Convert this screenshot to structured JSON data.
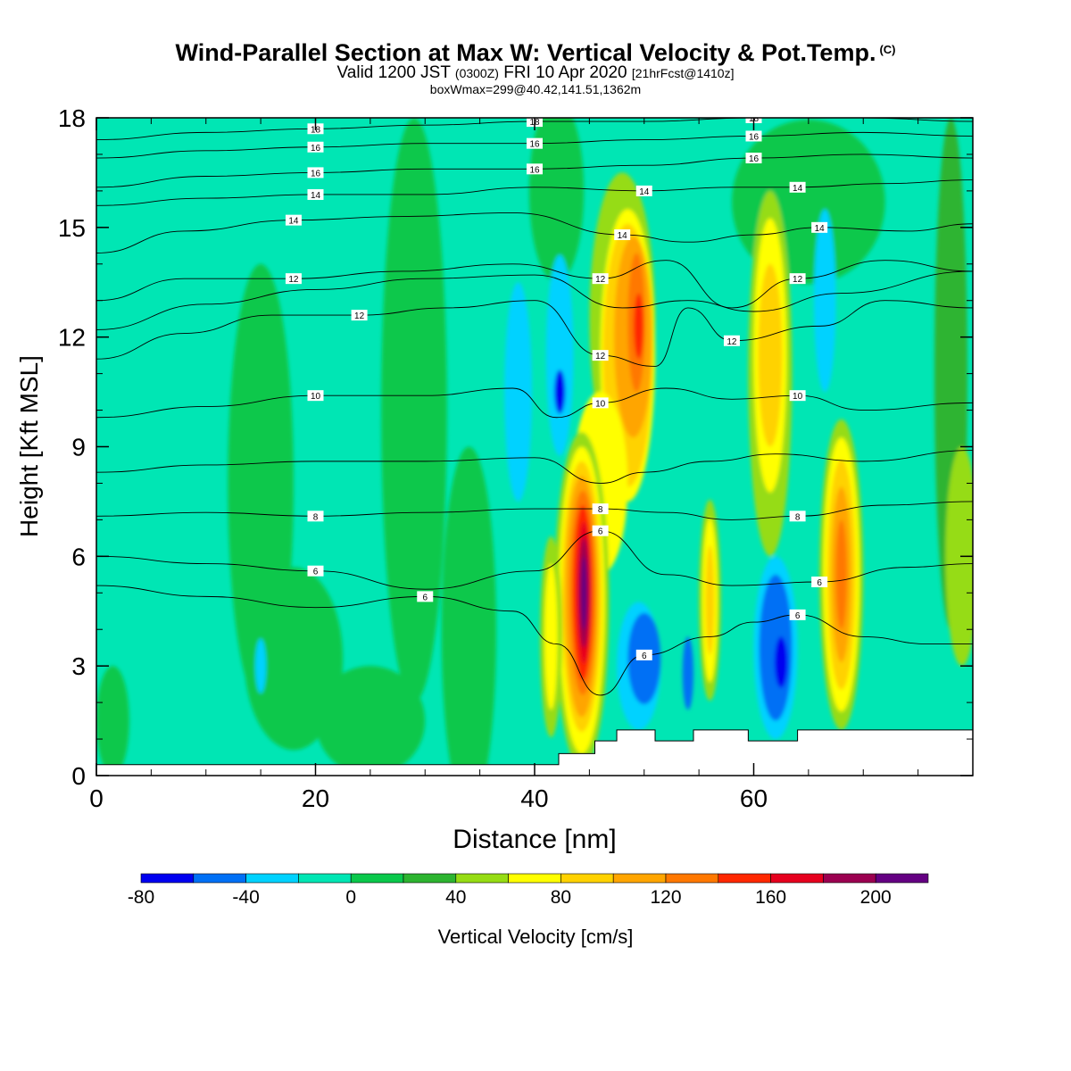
{
  "header": {
    "title": "Wind-Parallel Section at Max W: Vertical Velocity & Pot.Temp.",
    "copyright": "(C)",
    "valid_prefix": "Valid 1200 JST",
    "utc": "(0300Z)",
    "valid_date": "FRI 10 Apr 2020",
    "forecast": "[21hrFcst@1410z]",
    "box_info": "boxWmax=299@40.42,141.51,1362m"
  },
  "chart_data": {
    "type": "heatmap",
    "title": "Wind-Parallel Section at Max W: Vertical Velocity & Pot.Temp.",
    "xlabel": "Distance [nm]",
    "ylabel": "Height [Kft MSL]",
    "xlim": [
      0,
      80
    ],
    "ylim": [
      0,
      18
    ],
    "x_ticks": [
      "0",
      "20",
      "40",
      "60"
    ],
    "y_ticks": [
      "0",
      "3",
      "6",
      "9",
      "12",
      "15",
      "18"
    ],
    "colorbar": {
      "label": "Vertical Velocity [cm/s]",
      "tick_labels": [
        "-80",
        "-40",
        "0",
        "40",
        "80",
        "120",
        "160",
        "200"
      ],
      "bounds": [
        -80,
        -60,
        -40,
        -20,
        0,
        20,
        40,
        60,
        80,
        100,
        120,
        140,
        160,
        180,
        200,
        220
      ],
      "colors": [
        "#0000f0",
        "#0070f5",
        "#00d2ff",
        "#00e6b4",
        "#0ac84b",
        "#2db430",
        "#96dc14",
        "#ffff00",
        "#ffd200",
        "#ffa500",
        "#ff7800",
        "#ff2800",
        "#e6001e",
        "#9b0050",
        "#640082"
      ]
    },
    "velocity_cells": [
      {
        "x": 65,
        "y": 15.7,
        "w": 14,
        "h": 4.5,
        "v": 10
      },
      {
        "x": 15,
        "y": 8,
        "w": 6,
        "h": 12,
        "v": 10
      },
      {
        "x": 29,
        "y": 10,
        "w": 6,
        "h": 16,
        "v": 10
      },
      {
        "x": 18,
        "y": 3.2,
        "w": 9,
        "h": 5,
        "v": 10
      },
      {
        "x": 25,
        "y": 1.5,
        "w": 10,
        "h": 3,
        "v": 10
      },
      {
        "x": 34,
        "y": 4,
        "w": 5,
        "h": 10,
        "v": 10
      },
      {
        "x": 42,
        "y": 16,
        "w": 5,
        "h": 5,
        "v": 10
      },
      {
        "x": 78,
        "y": 11,
        "w": 3,
        "h": 14,
        "v": 30
      },
      {
        "x": 79,
        "y": 6,
        "w": 3,
        "h": 6,
        "v": 50
      },
      {
        "x": 1.5,
        "y": 1.5,
        "w": 3,
        "h": 3,
        "v": 10
      },
      {
        "x": 38.5,
        "y": 10.5,
        "w": 2.5,
        "h": 6,
        "v": -30
      },
      {
        "x": 42.3,
        "y": 11.5,
        "w": 2.5,
        "h": 5.5,
        "v": -30
      },
      {
        "x": 42.3,
        "y": 10.5,
        "w": 1,
        "h": 1.2,
        "v": -70
      },
      {
        "x": 49.5,
        "y": 3,
        "w": 4,
        "h": 3.5,
        "v": -30
      },
      {
        "x": 50,
        "y": 3.2,
        "w": 3,
        "h": 2.5,
        "v": -50
      },
      {
        "x": 54,
        "y": 2.8,
        "w": 1,
        "h": 2,
        "v": -50
      },
      {
        "x": 62,
        "y": 3.5,
        "w": 4,
        "h": 5,
        "v": -30
      },
      {
        "x": 62,
        "y": 3.5,
        "w": 3,
        "h": 4,
        "v": -50
      },
      {
        "x": 62.5,
        "y": 3.1,
        "w": 1.2,
        "h": 1.4,
        "v": -70
      },
      {
        "x": 66.5,
        "y": 13,
        "w": 2,
        "h": 5,
        "v": -30
      },
      {
        "x": 15,
        "y": 3,
        "w": 1,
        "h": 1.5,
        "v": -30
      },
      {
        "x": 48,
        "y": 12.5,
        "w": 6,
        "h": 8,
        "v": 50
      },
      {
        "x": 48.5,
        "y": 11.5,
        "w": 5,
        "h": 8,
        "v": 70
      },
      {
        "x": 48.5,
        "y": 11.5,
        "w": 4.5,
        "h": 7.2,
        "v": 90
      },
      {
        "x": 49,
        "y": 12,
        "w": 3.5,
        "h": 5.5,
        "v": 110
      },
      {
        "x": 49.3,
        "y": 12.4,
        "w": 1.6,
        "h": 3.8,
        "v": 130
      },
      {
        "x": 49.5,
        "y": 12.3,
        "w": 0.9,
        "h": 1.8,
        "v": 150
      },
      {
        "x": 46,
        "y": 8,
        "w": 5,
        "h": 5,
        "v": 70
      },
      {
        "x": 44.3,
        "y": 4.8,
        "w": 5,
        "h": 9.2,
        "v": 50
      },
      {
        "x": 44.3,
        "y": 4.8,
        "w": 4.2,
        "h": 8.4,
        "v": 70
      },
      {
        "x": 44.3,
        "y": 4.9,
        "w": 3.6,
        "h": 7.4,
        "v": 90
      },
      {
        "x": 44.3,
        "y": 4.9,
        "w": 3,
        "h": 6.6,
        "v": 110
      },
      {
        "x": 44.4,
        "y": 5,
        "w": 2.4,
        "h": 5.6,
        "v": 130
      },
      {
        "x": 44.4,
        "y": 5,
        "w": 1.8,
        "h": 4.8,
        "v": 150
      },
      {
        "x": 44.5,
        "y": 5,
        "w": 1.3,
        "h": 3.9,
        "v": 170
      },
      {
        "x": 44.5,
        "y": 5,
        "w": 0.9,
        "h": 3,
        "v": 190
      },
      {
        "x": 44.5,
        "y": 5,
        "w": 0.5,
        "h": 2,
        "v": 210
      },
      {
        "x": 41.5,
        "y": 3.8,
        "w": 2,
        "h": 5.5,
        "v": 50
      },
      {
        "x": 41.5,
        "y": 3.8,
        "w": 1.2,
        "h": 4,
        "v": 70
      },
      {
        "x": 61.5,
        "y": 11,
        "w": 4,
        "h": 10,
        "v": 50
      },
      {
        "x": 61.5,
        "y": 11.5,
        "w": 3,
        "h": 7.5,
        "v": 70
      },
      {
        "x": 61.5,
        "y": 11.5,
        "w": 2.2,
        "h": 5,
        "v": 90
      },
      {
        "x": 56,
        "y": 4.8,
        "w": 2,
        "h": 5.5,
        "v": 50
      },
      {
        "x": 56,
        "y": 4.8,
        "w": 1.4,
        "h": 4.5,
        "v": 70
      },
      {
        "x": 56,
        "y": 4.8,
        "w": 0.8,
        "h": 3,
        "v": 90
      },
      {
        "x": 68,
        "y": 5.5,
        "w": 4,
        "h": 8.5,
        "v": 50
      },
      {
        "x": 68,
        "y": 5.5,
        "w": 3.3,
        "h": 7.5,
        "v": 70
      },
      {
        "x": 68,
        "y": 5.5,
        "w": 2.6,
        "h": 6.3,
        "v": 90
      },
      {
        "x": 68,
        "y": 5.5,
        "w": 1.8,
        "h": 4.8,
        "v": 110
      },
      {
        "x": 68,
        "y": 5.5,
        "w": 1,
        "h": 3,
        "v": 130
      }
    ],
    "theta_contours": [
      {
        "label": "6",
        "points": [
          [
            0,
            5.2
          ],
          [
            10,
            4.9
          ],
          [
            20,
            4.6
          ],
          [
            30,
            4.9
          ],
          [
            38,
            4.5
          ],
          [
            42,
            3.6
          ],
          [
            46,
            2.2
          ],
          [
            50,
            3.3
          ],
          [
            56,
            3.8
          ],
          [
            60,
            4.2
          ],
          [
            64,
            4.4
          ],
          [
            70,
            3.8
          ],
          [
            76,
            3.6
          ],
          [
            80,
            3.6
          ]
        ]
      },
      {
        "label": "6",
        "points": [
          [
            0,
            6
          ],
          [
            10,
            5.8
          ],
          [
            20,
            5.6
          ],
          [
            30,
            5.1
          ],
          [
            40,
            5.6
          ],
          [
            46,
            6.7
          ],
          [
            52,
            5.5
          ],
          [
            58,
            5.2
          ],
          [
            66,
            5.3
          ],
          [
            74,
            5.7
          ],
          [
            80,
            5.8
          ]
        ]
      },
      {
        "label": "8",
        "points": [
          [
            0,
            7.1
          ],
          [
            10,
            7.2
          ],
          [
            20,
            7.1
          ],
          [
            30,
            7.2
          ],
          [
            40,
            7.3
          ],
          [
            46,
            7.3
          ],
          [
            52,
            7.2
          ],
          [
            58,
            7
          ],
          [
            64,
            7.1
          ],
          [
            72,
            7.4
          ],
          [
            80,
            7.5
          ]
        ]
      },
      {
        "label": "",
        "points": [
          [
            0,
            8.3
          ],
          [
            10,
            8.5
          ],
          [
            20,
            8.6
          ],
          [
            30,
            8.6
          ],
          [
            40,
            8.7
          ],
          [
            46,
            8
          ],
          [
            50,
            8.3
          ],
          [
            56,
            8.6
          ],
          [
            62,
            8.8
          ],
          [
            70,
            8.6
          ],
          [
            80,
            8.9
          ]
        ]
      },
      {
        "label": "10",
        "points": [
          [
            0,
            9.8
          ],
          [
            10,
            10.1
          ],
          [
            20,
            10.4
          ],
          [
            30,
            10.4
          ],
          [
            38,
            10.6
          ],
          [
            42,
            9.8
          ],
          [
            46,
            10.2
          ],
          [
            52,
            10.6
          ],
          [
            58,
            10.3
          ],
          [
            64,
            10.4
          ],
          [
            70,
            10
          ],
          [
            80,
            10.2
          ]
        ]
      },
      {
        "label": "12",
        "points": [
          [
            0,
            11.4
          ],
          [
            8,
            12.1
          ],
          [
            16,
            12.6
          ],
          [
            24,
            12.6
          ],
          [
            32,
            12.8
          ],
          [
            40,
            13
          ],
          [
            46,
            11.5
          ],
          [
            51,
            11.2
          ],
          [
            54,
            12.8
          ],
          [
            58,
            11.9
          ],
          [
            66,
            12.3
          ],
          [
            72,
            13
          ],
          [
            80,
            12.8
          ]
        ]
      },
      {
        "label": "",
        "points": [
          [
            0,
            12.2
          ],
          [
            10,
            12.9
          ],
          [
            20,
            13.3
          ],
          [
            30,
            13.6
          ],
          [
            40,
            13.7
          ],
          [
            48,
            12.8
          ],
          [
            54,
            13
          ],
          [
            60,
            12.7
          ],
          [
            68,
            13.2
          ],
          [
            80,
            13.8
          ]
        ]
      },
      {
        "label": "12",
        "points": [
          [
            0,
            13
          ],
          [
            8,
            13.6
          ],
          [
            18,
            13.6
          ],
          [
            28,
            13.8
          ],
          [
            38,
            14
          ],
          [
            46,
            13.6
          ],
          [
            52,
            14.1
          ],
          [
            58,
            12.8
          ],
          [
            64,
            13.6
          ],
          [
            72,
            14.1
          ],
          [
            80,
            13.8
          ]
        ]
      },
      {
        "label": "14",
        "points": [
          [
            0,
            14.3
          ],
          [
            8,
            14.9
          ],
          [
            18,
            15.2
          ],
          [
            28,
            15.3
          ],
          [
            38,
            15.4
          ],
          [
            48,
            14.8
          ],
          [
            54,
            14.6
          ],
          [
            60,
            14.8
          ],
          [
            66,
            15
          ],
          [
            74,
            14.9
          ],
          [
            80,
            15.1
          ]
        ]
      },
      {
        "label": "14",
        "points": [
          [
            0,
            15.6
          ],
          [
            10,
            15.8
          ],
          [
            20,
            15.9
          ],
          [
            30,
            15.9
          ],
          [
            40,
            16.1
          ],
          [
            50,
            16
          ],
          [
            58,
            16.1
          ],
          [
            64,
            16.1
          ],
          [
            72,
            16.2
          ],
          [
            80,
            16.3
          ]
        ]
      },
      {
        "label": "16",
        "points": [
          [
            0,
            16.1
          ],
          [
            10,
            16.4
          ],
          [
            20,
            16.5
          ],
          [
            30,
            16.6
          ],
          [
            40,
            16.6
          ],
          [
            50,
            16.7
          ],
          [
            60,
            16.9
          ],
          [
            70,
            17
          ],
          [
            80,
            16.9
          ]
        ]
      },
      {
        "label": "16",
        "points": [
          [
            0,
            16.9
          ],
          [
            10,
            17.1
          ],
          [
            20,
            17.2
          ],
          [
            30,
            17.3
          ],
          [
            40,
            17.3
          ],
          [
            50,
            17.4
          ],
          [
            60,
            17.5
          ],
          [
            70,
            17.6
          ],
          [
            80,
            17.5
          ]
        ]
      },
      {
        "label": "18",
        "points": [
          [
            0,
            17.4
          ],
          [
            10,
            17.6
          ],
          [
            20,
            17.7
          ],
          [
            30,
            17.8
          ],
          [
            40,
            17.9
          ],
          [
            50,
            17.9
          ],
          [
            60,
            18
          ],
          [
            70,
            18
          ],
          [
            80,
            17.9
          ]
        ]
      }
    ],
    "terrain": [
      [
        0,
        0.3
      ],
      [
        42.2,
        0.3
      ],
      [
        42.2,
        0.6
      ],
      [
        45.5,
        0.6
      ],
      [
        45.5,
        0.95
      ],
      [
        47.5,
        0.95
      ],
      [
        47.5,
        1.25
      ],
      [
        51,
        1.25
      ],
      [
        51,
        0.95
      ],
      [
        54.5,
        0.95
      ],
      [
        54.5,
        1.25
      ],
      [
        59.5,
        1.25
      ],
      [
        59.5,
        0.95
      ],
      [
        64,
        0.95
      ],
      [
        64,
        1.25
      ],
      [
        80,
        1.25
      ]
    ]
  }
}
